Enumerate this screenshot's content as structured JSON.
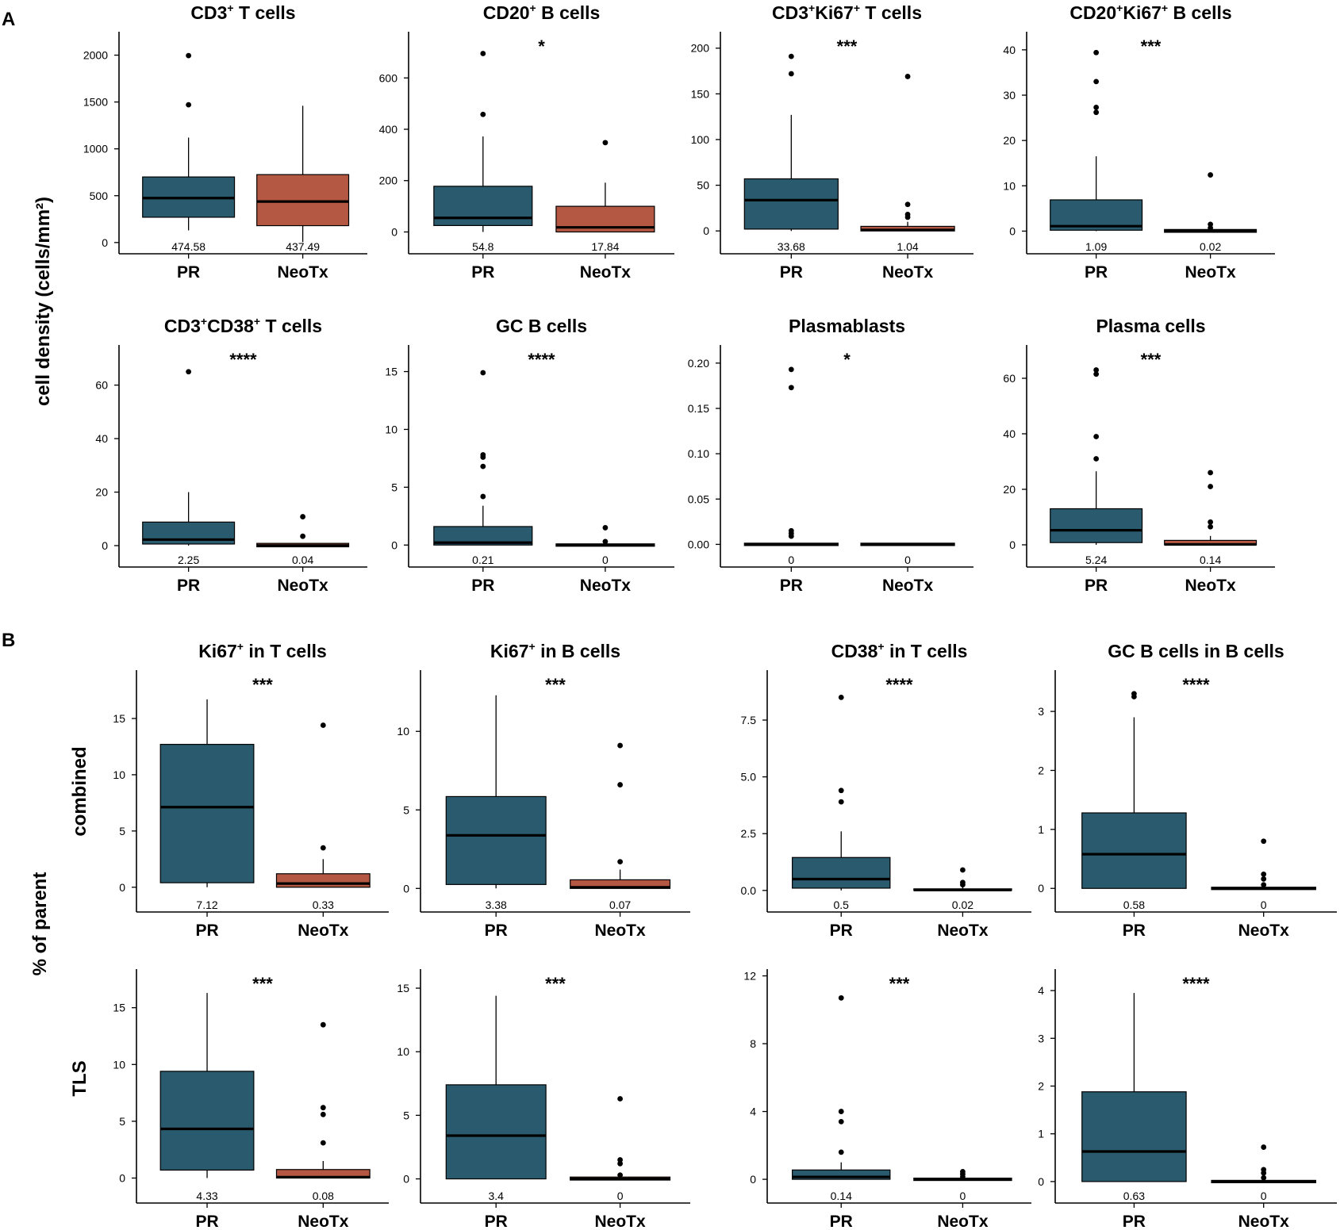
{
  "colors": {
    "PR": "#2a5a6d",
    "NeoTx": "#b45843"
  },
  "panel_labels": [
    "A",
    "B"
  ],
  "ylabel_A": "cell density (cells/mm²)",
  "ylabel_B": "% of parent",
  "row_labels_B": [
    "combined",
    "TLS"
  ],
  "chart_data": [
    {
      "type": "box",
      "title": "CD3",
      "title_sup": "+",
      "title_rest": " T cells",
      "sig": "",
      "ylim": [
        -120,
        2250
      ],
      "yticks": [
        0,
        500,
        1000,
        1500,
        2000
      ],
      "ytick_labels": [
        "0",
        "500",
        "1000",
        "1500",
        "2000"
      ],
      "categories": [
        "PR",
        "NeoTx"
      ],
      "series": [
        {
          "name": "PR",
          "q1": 270,
          "median": 474.58,
          "q3": 700,
          "whisker_low": 130,
          "whisker_high": 1120,
          "outliers": [
            1470,
            1995
          ],
          "median_label": "474.58"
        },
        {
          "name": "NeoTx",
          "q1": 180,
          "median": 437.49,
          "q3": 725,
          "whisker_low": 5,
          "whisker_high": 1460,
          "outliers": [],
          "median_label": "437.49"
        }
      ]
    },
    {
      "type": "box",
      "title": "CD20",
      "title_sup": "+",
      "title_rest": " B cells",
      "sig": "*",
      "ylim": [
        -85,
        780
      ],
      "yticks": [
        0,
        200,
        400,
        600
      ],
      "ytick_labels": [
        "0",
        "200",
        "400",
        "600"
      ],
      "categories": [
        "PR",
        "NeoTx"
      ],
      "series": [
        {
          "name": "PR",
          "q1": 25,
          "median": 54.8,
          "q3": 178,
          "whisker_low": 0,
          "whisker_high": 372,
          "outliers": [
            458,
            695
          ],
          "median_label": "54.8"
        },
        {
          "name": "NeoTx",
          "q1": 0,
          "median": 17.84,
          "q3": 100,
          "whisker_low": 0,
          "whisker_high": 192,
          "outliers": [
            348
          ],
          "median_label": "17.84"
        }
      ]
    },
    {
      "type": "box",
      "title": "CD3",
      "title_sup": "+",
      "title_rest": "Ki67",
      "title_sup2": "+",
      "title_rest2": " T cells",
      "sig": "***",
      "ylim": [
        -25,
        218
      ],
      "yticks": [
        0,
        50,
        100,
        150,
        200
      ],
      "ytick_labels": [
        "0",
        "50",
        "100",
        "150",
        "200"
      ],
      "categories": [
        "PR",
        "NeoTx"
      ],
      "series": [
        {
          "name": "PR",
          "q1": 2,
          "median": 33.68,
          "q3": 57,
          "whisker_low": 0,
          "whisker_high": 127,
          "outliers": [
            172,
            191
          ],
          "median_label": "33.68"
        },
        {
          "name": "NeoTx",
          "q1": 0,
          "median": 1.04,
          "q3": 5,
          "whisker_low": 0,
          "whisker_high": 10,
          "outliers": [
            15,
            18,
            29,
            169
          ],
          "median_label": "1.04"
        }
      ]
    },
    {
      "type": "box",
      "title": "CD20",
      "title_sup": "+",
      "title_rest": "Ki67",
      "title_sup2": "+",
      "title_rest2": " B cells",
      "sig": "***",
      "ylim": [
        -5,
        44
      ],
      "yticks": [
        0,
        10,
        20,
        30,
        40
      ],
      "ytick_labels": [
        "0",
        "10",
        "20",
        "30",
        "40"
      ],
      "categories": [
        "PR",
        "NeoTx"
      ],
      "series": [
        {
          "name": "PR",
          "q1": 0.2,
          "median": 1.09,
          "q3": 6.9,
          "whisker_low": 0,
          "whisker_high": 16.5,
          "outliers": [
            26.2,
            27.3,
            33,
            39.4
          ],
          "median_label": "1.09"
        },
        {
          "name": "NeoTx",
          "q1": 0,
          "median": 0.02,
          "q3": 0.1,
          "whisker_low": 0,
          "whisker_high": 0.1,
          "outliers": [
            0.7,
            1.5,
            12.4
          ],
          "median_label": "0.02"
        }
      ]
    },
    {
      "type": "box",
      "title": "CD3",
      "title_sup": "+",
      "title_rest": "CD38",
      "title_sup2": "+",
      "title_rest2": " T cells",
      "sig": "****",
      "ylim": [
        -8,
        75
      ],
      "yticks": [
        0,
        20,
        40,
        60
      ],
      "ytick_labels": [
        "0",
        "20",
        "40",
        "60"
      ],
      "categories": [
        "PR",
        "NeoTx"
      ],
      "series": [
        {
          "name": "PR",
          "q1": 0.6,
          "median": 2.25,
          "q3": 8.8,
          "whisker_low": 0,
          "whisker_high": 20,
          "outliers": [
            65
          ],
          "median_label": "2.25"
        },
        {
          "name": "NeoTx",
          "q1": 0,
          "median": 0.04,
          "q3": 0.4,
          "whisker_low": 0,
          "whisker_high": 0.5,
          "outliers": [
            3.5,
            10.8
          ],
          "median_label": "0.04"
        }
      ]
    },
    {
      "type": "box",
      "title": "GC B cells",
      "sig": "****",
      "ylim": [
        -1.9,
        17.3
      ],
      "yticks": [
        0,
        5,
        10,
        15
      ],
      "ytick_labels": [
        "0",
        "5",
        "10",
        "15"
      ],
      "categories": [
        "PR",
        "NeoTx"
      ],
      "series": [
        {
          "name": "PR",
          "q1": 0,
          "median": 0.21,
          "q3": 1.6,
          "whisker_low": 0,
          "whisker_high": 3.4,
          "outliers": [
            4.2,
            6.8,
            7.6,
            7.8,
            14.9
          ],
          "median_label": "0.21"
        },
        {
          "name": "NeoTx",
          "q1": 0,
          "median": 0,
          "q3": 0,
          "whisker_low": 0,
          "whisker_high": 0,
          "outliers": [
            0.3,
            1.5
          ],
          "median_label": "0"
        }
      ]
    },
    {
      "type": "box",
      "title": "Plasmablasts",
      "sig": "*",
      "ylim": [
        -0.025,
        0.22
      ],
      "yticks": [
        0,
        0.05,
        0.1,
        0.15,
        0.2
      ],
      "ytick_labels": [
        "0.00",
        "0.05",
        "0.10",
        "0.15",
        "0.20"
      ],
      "categories": [
        "PR",
        "NeoTx"
      ],
      "series": [
        {
          "name": "PR",
          "q1": 0,
          "median": 0,
          "q3": 0,
          "whisker_low": 0,
          "whisker_high": 0,
          "outliers": [
            0.009,
            0.012,
            0.015,
            0.173,
            0.193
          ],
          "median_label": "0"
        },
        {
          "name": "NeoTx",
          "q1": 0,
          "median": 0,
          "q3": 0,
          "whisker_low": 0,
          "whisker_high": 0,
          "outliers": [],
          "median_label": "0"
        }
      ]
    },
    {
      "type": "box",
      "title": "Plasma cells",
      "sig": "***",
      "ylim": [
        -8,
        72
      ],
      "yticks": [
        0,
        20,
        40,
        60
      ],
      "ytick_labels": [
        "0",
        "20",
        "40",
        "60"
      ],
      "categories": [
        "PR",
        "NeoTx"
      ],
      "series": [
        {
          "name": "PR",
          "q1": 0.8,
          "median": 5.24,
          "q3": 13,
          "whisker_low": 0,
          "whisker_high": 26.5,
          "outliers": [
            31,
            39,
            61.5,
            63
          ],
          "median_label": "5.24"
        },
        {
          "name": "NeoTx",
          "q1": 0,
          "median": 0.14,
          "q3": 1.6,
          "whisker_low": 0,
          "whisker_high": 3.2,
          "outliers": [
            6.5,
            8.2,
            21,
            26
          ],
          "median_label": "0.14"
        }
      ]
    },
    {
      "type": "box",
      "title": "Ki67",
      "title_sup": "+",
      "title_rest": " in T cells",
      "sig": "***",
      "ylim": [
        -2.2,
        19.3
      ],
      "yticks": [
        0,
        5,
        10,
        15
      ],
      "ytick_labels": [
        "0",
        "5",
        "10",
        "15"
      ],
      "categories": [
        "PR",
        "NeoTx"
      ],
      "series": [
        {
          "name": "PR",
          "q1": 0.4,
          "median": 7.12,
          "q3": 12.7,
          "whisker_low": 0,
          "whisker_high": 16.7,
          "outliers": [],
          "median_label": "7.12"
        },
        {
          "name": "NeoTx",
          "q1": 0,
          "median": 0.33,
          "q3": 1.2,
          "whisker_low": 0,
          "whisker_high": 2.5,
          "outliers": [
            3.5,
            14.4
          ],
          "median_label": "0.33"
        }
      ]
    },
    {
      "type": "box",
      "title": "Ki67",
      "title_sup": "+",
      "title_rest": " in B cells",
      "sig": "***",
      "ylim": [
        -1.5,
        13.9
      ],
      "yticks": [
        0,
        5,
        10
      ],
      "ytick_labels": [
        "0",
        "5",
        "10"
      ],
      "categories": [
        "PR",
        "NeoTx"
      ],
      "series": [
        {
          "name": "PR",
          "q1": 0.25,
          "median": 3.38,
          "q3": 5.85,
          "whisker_low": 0,
          "whisker_high": 12.3,
          "outliers": [],
          "median_label": "3.38"
        },
        {
          "name": "NeoTx",
          "q1": 0,
          "median": 0.07,
          "q3": 0.55,
          "whisker_low": 0,
          "whisker_high": 1.2,
          "outliers": [
            1.7,
            6.6,
            9.1
          ],
          "median_label": "0.07"
        }
      ]
    },
    {
      "type": "box",
      "title": "CD38",
      "title_sup": "+",
      "title_rest": " in T cells",
      "sig": "****",
      "ylim": [
        -0.95,
        9.7
      ],
      "yticks": [
        0,
        2.5,
        5,
        7.5
      ],
      "ytick_labels": [
        "0.0",
        "2.5",
        "5.0",
        "7.5"
      ],
      "categories": [
        "PR",
        "NeoTx"
      ],
      "series": [
        {
          "name": "PR",
          "q1": 0.1,
          "median": 0.5,
          "q3": 1.45,
          "whisker_low": 0,
          "whisker_high": 2.6,
          "outliers": [
            3.9,
            4.4,
            8.5
          ],
          "median_label": "0.5"
        },
        {
          "name": "NeoTx",
          "q1": 0,
          "median": 0.02,
          "q3": 0.07,
          "whisker_low": 0,
          "whisker_high": 0.15,
          "outliers": [
            0.25,
            0.35,
            0.9
          ],
          "median_label": "0.02"
        }
      ]
    },
    {
      "type": "box",
      "title": "GC B cells in B cells",
      "sig": "****",
      "ylim": [
        -0.4,
        3.7
      ],
      "yticks": [
        0,
        1,
        2,
        3
      ],
      "ytick_labels": [
        "0",
        "1",
        "2",
        "3"
      ],
      "categories": [
        "PR",
        "NeoTx"
      ],
      "series": [
        {
          "name": "PR",
          "q1": 0,
          "median": 0.58,
          "q3": 1.28,
          "whisker_low": 0,
          "whisker_high": 2.9,
          "outliers": [
            3.25,
            3.3
          ],
          "median_label": "0.58"
        },
        {
          "name": "NeoTx",
          "q1": 0,
          "median": 0,
          "q3": 0,
          "whisker_low": 0,
          "whisker_high": 0,
          "outliers": [
            0.06,
            0.16,
            0.24,
            0.8
          ],
          "median_label": "0"
        }
      ]
    },
    {
      "type": "box",
      "title": "",
      "sig": "***",
      "ylim": [
        -2.2,
        18.4
      ],
      "yticks": [
        0,
        5,
        10,
        15
      ],
      "ytick_labels": [
        "0",
        "5",
        "10",
        "15"
      ],
      "categories": [
        "PR",
        "NeoTx"
      ],
      "series": [
        {
          "name": "PR",
          "q1": 0.7,
          "median": 4.33,
          "q3": 9.4,
          "whisker_low": 0,
          "whisker_high": 16.3,
          "outliers": [],
          "median_label": "4.33"
        },
        {
          "name": "NeoTx",
          "q1": 0,
          "median": 0.08,
          "q3": 0.75,
          "whisker_low": 0,
          "whisker_high": 1.5,
          "outliers": [
            3.1,
            5.6,
            6.2,
            13.5
          ],
          "median_label": "0.08"
        }
      ]
    },
    {
      "type": "box",
      "title": "",
      "sig": "***",
      "ylim": [
        -1.9,
        16.5
      ],
      "yticks": [
        0,
        5,
        10,
        15
      ],
      "ytick_labels": [
        "0",
        "5",
        "10",
        "15"
      ],
      "categories": [
        "PR",
        "NeoTx"
      ],
      "series": [
        {
          "name": "PR",
          "q1": 0,
          "median": 3.4,
          "q3": 7.4,
          "whisker_low": 0,
          "whisker_high": 14.4,
          "outliers": [],
          "median_label": "3.4"
        },
        {
          "name": "NeoTx",
          "q1": 0,
          "median": 0,
          "q3": 0.05,
          "whisker_low": 0,
          "whisker_high": 0.1,
          "outliers": [
            0.3,
            1.2,
            1.5,
            6.3
          ],
          "median_label": "0"
        }
      ]
    },
    {
      "type": "box",
      "title": "",
      "sig": "***",
      "ylim": [
        -1.4,
        12.4
      ],
      "yticks": [
        0,
        4,
        8,
        12
      ],
      "ytick_labels": [
        "0",
        "4",
        "8",
        "12"
      ],
      "categories": [
        "PR",
        "NeoTx"
      ],
      "series": [
        {
          "name": "PR",
          "q1": 0,
          "median": 0.14,
          "q3": 0.55,
          "whisker_low": 0,
          "whisker_high": 1.0,
          "outliers": [
            1.6,
            3.4,
            4.0,
            10.7
          ],
          "median_label": "0.14"
        },
        {
          "name": "NeoTx",
          "q1": 0,
          "median": 0,
          "q3": 0,
          "whisker_low": 0,
          "whisker_high": 0,
          "outliers": [
            0.15,
            0.3,
            0.45
          ],
          "median_label": "0"
        }
      ]
    },
    {
      "type": "box",
      "title": "",
      "sig": "****",
      "ylim": [
        -0.45,
        4.45
      ],
      "yticks": [
        0,
        1,
        2,
        3,
        4
      ],
      "ytick_labels": [
        "0",
        "1",
        "2",
        "3",
        "4"
      ],
      "categories": [
        "PR",
        "NeoTx"
      ],
      "series": [
        {
          "name": "PR",
          "q1": 0,
          "median": 0.63,
          "q3": 1.88,
          "whisker_low": 0,
          "whisker_high": 3.95,
          "outliers": [],
          "median_label": "0.63"
        },
        {
          "name": "NeoTx",
          "q1": 0,
          "median": 0,
          "q3": 0,
          "whisker_low": 0,
          "whisker_high": 0,
          "outliers": [
            0.08,
            0.18,
            0.25,
            0.72
          ],
          "median_label": "0"
        }
      ]
    }
  ]
}
